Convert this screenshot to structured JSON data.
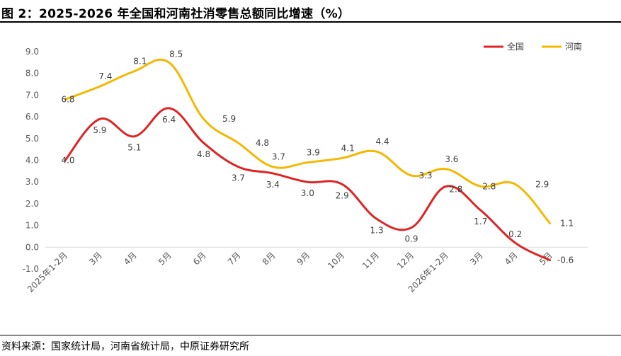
{
  "figure": {
    "title": "图 2：2025-2026 年全国和河南社消零售总额同比增速（%）",
    "source": "资料来源：国家统计局，河南省统计局，中原证券研究所"
  },
  "chart_data": {
    "type": "line",
    "title": "",
    "xlabel": "",
    "ylabel": "",
    "ylim": [
      -1.0,
      9.0
    ],
    "yticks": [
      "-1.0",
      "0.0",
      "1.0",
      "2.0",
      "3.0",
      "4.0",
      "5.0",
      "6.0",
      "7.0",
      "8.0",
      "9.0"
    ],
    "categories": [
      "2025年1-2月",
      "3月",
      "4月",
      "5月",
      "6月",
      "7月",
      "8月",
      "9月",
      "10月",
      "11月",
      "12月",
      "2026年1-2月",
      "3月",
      "4月",
      "5月"
    ],
    "series": [
      {
        "name": "全国",
        "color": "#e02424",
        "values": [
          4.0,
          5.9,
          5.1,
          6.4,
          4.8,
          3.7,
          3.4,
          3.0,
          2.9,
          1.3,
          0.9,
          2.8,
          1.7,
          0.2,
          -0.6
        ]
      },
      {
        "name": "河南",
        "color": "#f5b800",
        "values": [
          6.8,
          7.4,
          8.1,
          8.5,
          5.9,
          4.8,
          3.7,
          3.9,
          4.1,
          4.4,
          3.3,
          3.6,
          2.8,
          2.9,
          1.1
        ]
      }
    ],
    "grid": false,
    "legend": "top-right",
    "data_labels": true
  }
}
